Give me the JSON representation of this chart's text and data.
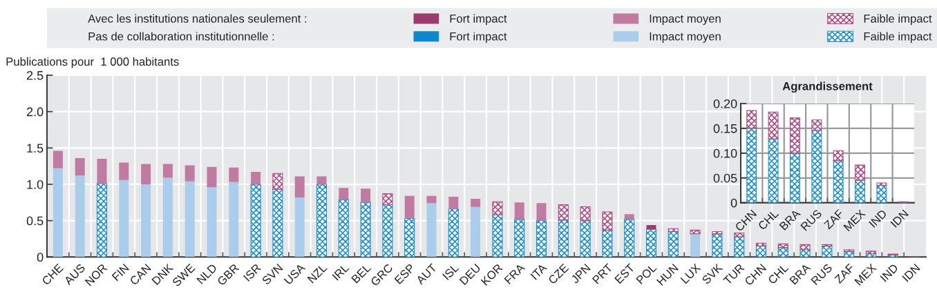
{
  "chart_data": [
    {
      "type": "bar",
      "stacked": true,
      "ylabel": "Publications pour  1 000 habitants",
      "legend": "top",
      "grid": true,
      "annotations": [
        "Avec les institutions nationales seulement :",
        "Pas de collaboration institutionnelle :"
      ],
      "categories": [
        "CHE",
        "AUS",
        "NOR",
        "FIN",
        "CAN",
        "DNK",
        "SWE",
        "NLD",
        "GBR",
        "ISR",
        "SVN",
        "USA",
        "NZL",
        "IRL",
        "BEL",
        "GRC",
        "ESP",
        "AUT",
        "ISL",
        "DEU",
        "KOR",
        "FRA",
        "ITA",
        "CZE",
        "JPN",
        "PRT",
        "EST",
        "POL",
        "HUN",
        "LUX",
        "SVK",
        "TUR",
        "CHN",
        "CHL",
        "BRA",
        "RUS",
        "ZAF",
        "MEX",
        "IND",
        "IDN"
      ],
      "ylim": [
        0,
        2.5
      ],
      "yticks": [
        0,
        0.5,
        {
          "value": 1,
          "label": "1.0"
        },
        1.5,
        {
          "value": 2,
          "label": "2.0"
        },
        2.5
      ],
      "series": [
        {
          "name": "Fort impact",
          "color": "#0b88d0",
          "values": [
            null,
            null,
            null,
            null,
            null,
            null,
            null,
            null,
            null,
            null,
            null,
            null,
            null,
            null,
            null,
            null,
            null,
            null,
            null,
            null,
            null,
            null,
            null,
            null,
            null,
            null,
            null,
            null,
            null,
            null,
            null,
            null,
            null,
            null,
            null,
            null,
            null,
            null,
            null,
            null
          ]
        },
        {
          "name": "Impact moyen",
          "color": "#abcdec",
          "values": [
            1.22,
            1.12,
            null,
            1.06,
            1.0,
            1.09,
            1.04,
            0.96,
            1.03,
            null,
            null,
            0.82,
            null,
            null,
            null,
            null,
            null,
            0.74,
            null,
            0.69,
            null,
            null,
            null,
            null,
            null,
            null,
            null,
            null,
            null,
            0.32,
            null,
            null,
            null,
            null,
            null,
            null,
            null,
            null,
            null,
            null
          ]
        },
        {
          "name": "Faible impact",
          "color": "#1a8fd6",
          "values": [
            null,
            null,
            1.01,
            null,
            null,
            null,
            null,
            null,
            null,
            1.0,
            0.93,
            null,
            1.0,
            0.79,
            0.75,
            0.72,
            0.53,
            null,
            0.66,
            null,
            0.58,
            0.52,
            0.5,
            0.51,
            0.5,
            0.37,
            0.52,
            0.38,
            0.35,
            null,
            0.32,
            0.28,
            0.15,
            0.13,
            0.1,
            0.15,
            0.08,
            0.05,
            0.03,
            0.001
          ]
        },
        {
          "name": "Fort impact",
          "color": "#9b3b6e",
          "values": [
            null,
            null,
            null,
            null,
            null,
            null,
            null,
            null,
            null,
            null,
            null,
            null,
            null,
            null,
            null,
            null,
            null,
            null,
            null,
            null,
            null,
            null,
            null,
            null,
            null,
            null,
            null,
            0.06,
            null,
            null,
            null,
            null,
            null,
            null,
            null,
            null,
            null,
            null,
            null,
            null
          ]
        },
        {
          "name": "Impact moyen",
          "color": "#c17ba0",
          "values": [
            0.24,
            0.24,
            0.34,
            0.24,
            0.28,
            0.19,
            0.22,
            0.28,
            0.2,
            0.17,
            null,
            0.29,
            0.11,
            0.16,
            0.19,
            null,
            0.31,
            0.1,
            0.17,
            0.11,
            null,
            0.23,
            0.24,
            null,
            null,
            null,
            0.07,
            null,
            null,
            null,
            null,
            null,
            null,
            null,
            null,
            null,
            null,
            null,
            null,
            null
          ]
        },
        {
          "name": "Faible impact",
          "color": "#b3487f",
          "values": [
            null,
            null,
            null,
            null,
            null,
            null,
            null,
            null,
            null,
            null,
            0.22,
            null,
            null,
            null,
            null,
            0.15,
            null,
            null,
            null,
            null,
            0.18,
            null,
            null,
            0.21,
            0.19,
            0.25,
            null,
            null,
            0.04,
            0.05,
            0.03,
            0.05,
            0.04,
            0.05,
            0.07,
            0.02,
            0.02,
            0.03,
            0.01,
            0.001
          ]
        }
      ]
    },
    {
      "type": "bar",
      "stacked": true,
      "title": "Agrandissement",
      "grid": true,
      "categories": [
        "CHN",
        "CHL",
        "BRA",
        "RUS",
        "ZAF",
        "MEX",
        "IND",
        "IDN"
      ],
      "ylim": [
        0,
        0.2
      ],
      "yticks": [
        0,
        0.05,
        {
          "value": 0.1,
          "label": "0.10"
        },
        0.15,
        {
          "value": 0.2,
          "label": "0.20"
        }
      ],
      "series": [
        {
          "color": "#0b88d0",
          "values": [
            null,
            null,
            null,
            null,
            null,
            null,
            null,
            null
          ]
        },
        {
          "color": "#abcdec",
          "values": [
            null,
            null,
            null,
            null,
            null,
            null,
            null,
            null
          ]
        },
        {
          "color": "#1a8fd6",
          "values": [
            0.15,
            0.129,
            0.1,
            0.146,
            0.085,
            0.045,
            0.035,
            0.001
          ]
        },
        {
          "color": "#9b3b6e",
          "values": [
            null,
            null,
            null,
            null,
            null,
            null,
            null,
            null
          ]
        },
        {
          "color": "#c17ba0",
          "values": [
            null,
            null,
            null,
            null,
            null,
            null,
            null,
            null
          ]
        },
        {
          "color": "#b3487f",
          "values": [
            0.036,
            0.054,
            0.071,
            0.021,
            0.02,
            0.031,
            0.005,
            0.001
          ]
        }
      ]
    }
  ]
}
